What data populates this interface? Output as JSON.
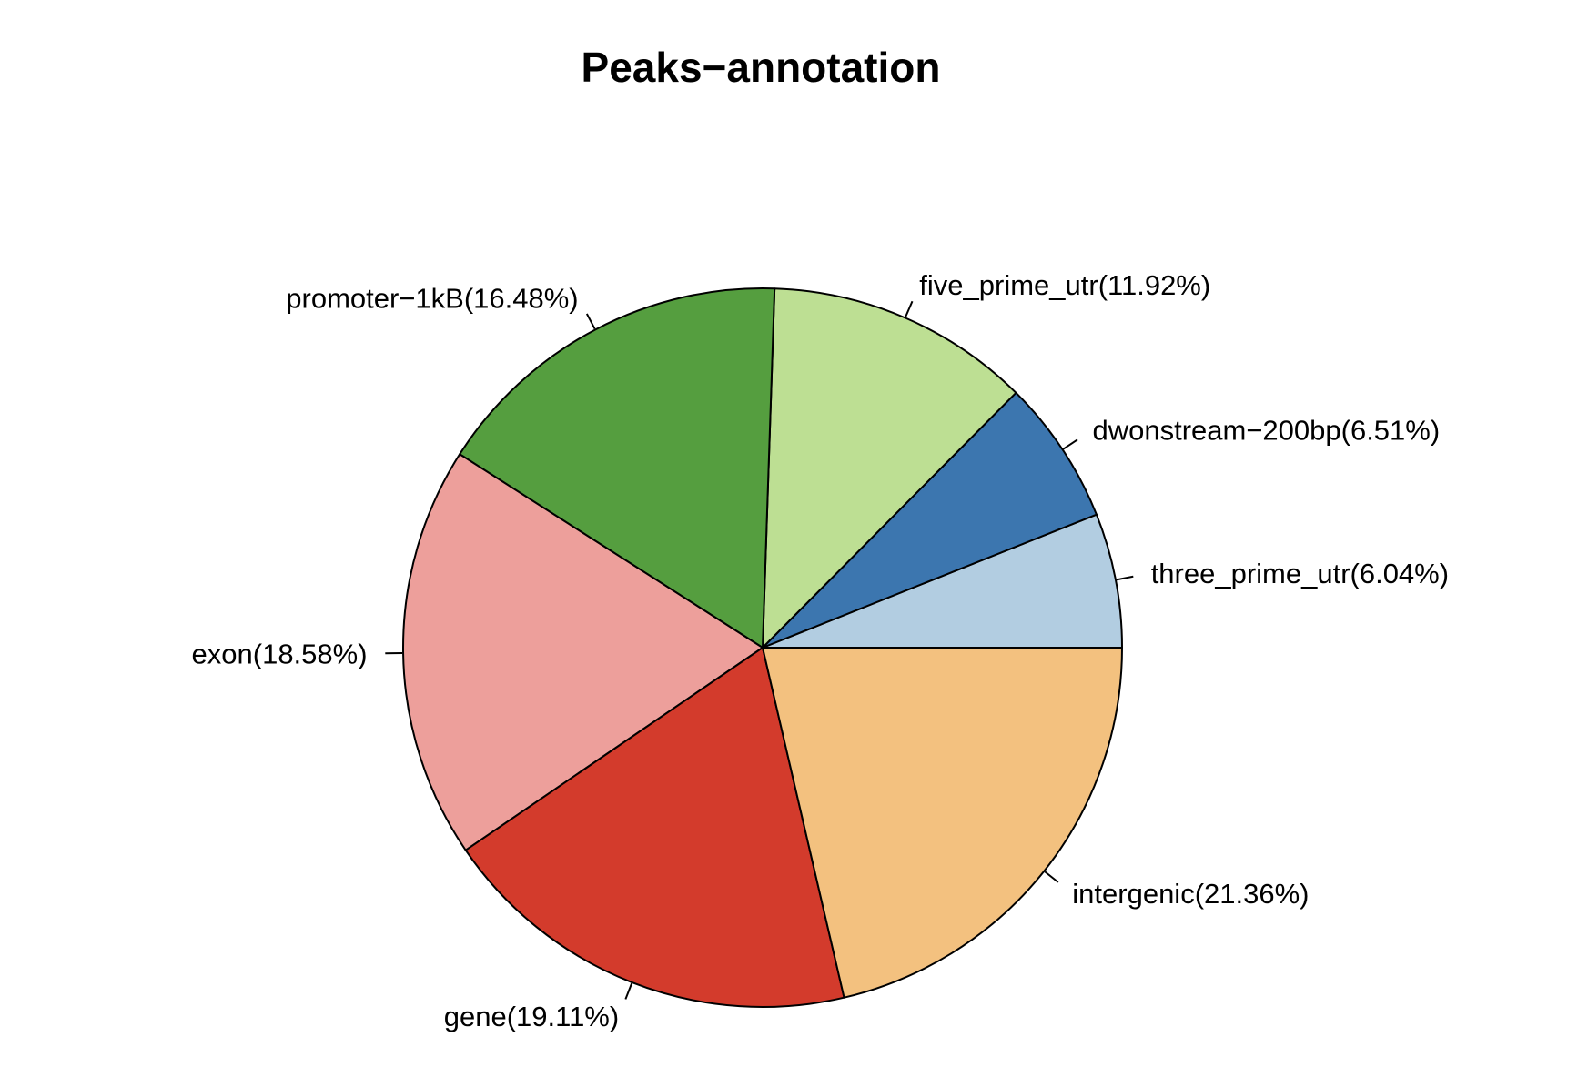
{
  "chart_data": {
    "type": "pie",
    "title": "Peaks−annotation",
    "start_angle_deg": 0,
    "direction": "counterclockwise",
    "slices": [
      {
        "name": "three_prime_utr",
        "label": "three_prime_utr(6.04%)",
        "value": 6.04,
        "color": "#b2cde1"
      },
      {
        "name": "dwonstream-200bp",
        "label": "dwonstream−200bp(6.51%)",
        "value": 6.51,
        "color": "#3c76af"
      },
      {
        "name": "five_prime_utr",
        "label": "five_prime_utr(11.92%)",
        "value": 11.92,
        "color": "#bddf93"
      },
      {
        "name": "promoter-1kB",
        "label": "promoter−1kB(16.48%)",
        "value": 16.48,
        "color": "#559e3f"
      },
      {
        "name": "exon",
        "label": "exon(18.58%)",
        "value": 18.58,
        "color": "#ed9f9b"
      },
      {
        "name": "gene",
        "label": "gene(19.11%)",
        "value": 19.11,
        "color": "#d33b2c"
      },
      {
        "name": "intergenic",
        "label": "intergenic(21.36%)",
        "value": 21.36,
        "color": "#f3c17f"
      }
    ]
  }
}
